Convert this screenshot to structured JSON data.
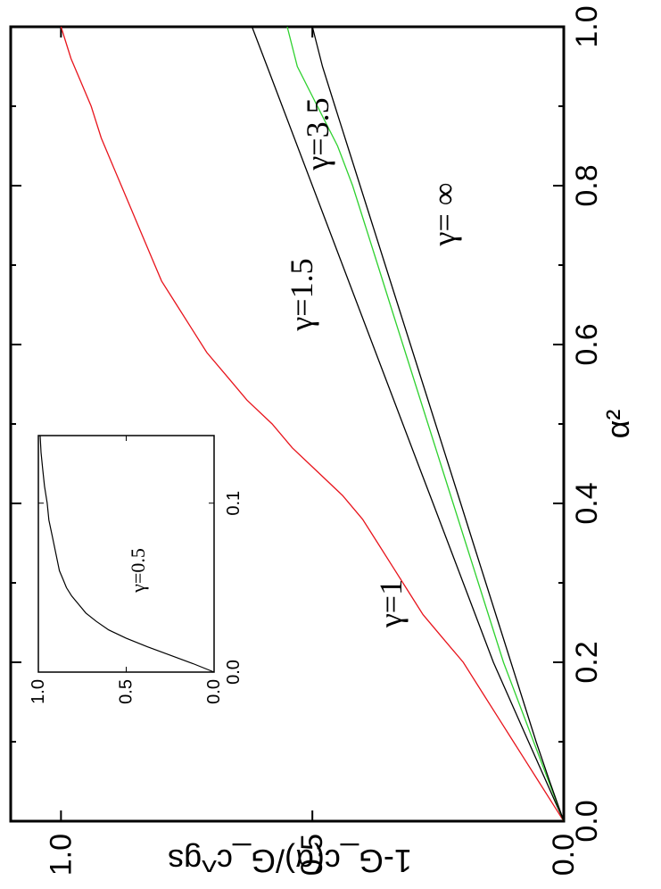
{
  "chart_data": [
    {
      "type": "line",
      "title": "",
      "xlabel": "α²",
      "ylabel": "1-G_c(α)/G_c^gs",
      "xlim": [
        0.0,
        1.0
      ],
      "ylim": [
        0.0,
        1.1
      ],
      "xticks": [
        "0.0",
        "0.2",
        "0.4",
        "0.6",
        "0.8",
        "1.0"
      ],
      "yticks": [
        "0.0",
        "0.5",
        "1.0"
      ],
      "grid": false,
      "colors": {
        "red": "#e8141c",
        "green": "#2fd12f",
        "black": "#000000"
      },
      "series": [
        {
          "name": "γ=1",
          "color": "#e8141c",
          "x": [
            0,
            0.02,
            0.05,
            0.08,
            0.1,
            0.13,
            0.16,
            0.2,
            0.23,
            0.26,
            0.29,
            0.32,
            0.35,
            0.38,
            0.41,
            0.44,
            0.47,
            0.5,
            0.53,
            0.56,
            0.59,
            0.62,
            0.65,
            0.68,
            0.71,
            0.74,
            0.77,
            0.8,
            0.83,
            0.86,
            0.9,
            0.93,
            0.96,
            1.0
          ],
          "y": [
            0,
            0.02,
            0.05,
            0.08,
            0.1,
            0.13,
            0.16,
            0.2,
            0.24,
            0.28,
            0.31,
            0.34,
            0.37,
            0.4,
            0.44,
            0.49,
            0.54,
            0.58,
            0.63,
            0.67,
            0.71,
            0.74,
            0.77,
            0.8,
            0.82,
            0.84,
            0.86,
            0.88,
            0.9,
            0.92,
            0.94,
            0.96,
            0.98,
            1.0
          ]
        },
        {
          "name": "γ=1.5",
          "color": "#000000",
          "x": [
            0,
            0.05,
            0.1,
            0.15,
            0.2,
            0.25,
            0.3,
            0.35,
            0.4,
            0.45,
            0.5,
            0.55,
            0.6,
            0.65,
            0.7,
            0.75,
            0.8,
            0.85,
            0.9,
            0.95,
            1.0
          ],
          "y": [
            0,
            0.035,
            0.07,
            0.105,
            0.14,
            0.17,
            0.2,
            0.23,
            0.26,
            0.29,
            0.32,
            0.35,
            0.38,
            0.41,
            0.44,
            0.47,
            0.5,
            0.53,
            0.56,
            0.59,
            0.62
          ]
        },
        {
          "name": "γ=3.5",
          "color": "#2fd12f",
          "x": [
            0,
            0.05,
            0.1,
            0.15,
            0.2,
            0.25,
            0.3,
            0.35,
            0.4,
            0.45,
            0.5,
            0.55,
            0.6,
            0.65,
            0.7,
            0.75,
            0.8,
            0.85,
            0.9,
            0.95,
            1.0
          ],
          "y": [
            0,
            0.03,
            0.06,
            0.09,
            0.12,
            0.145,
            0.17,
            0.195,
            0.22,
            0.245,
            0.27,
            0.295,
            0.32,
            0.345,
            0.37,
            0.395,
            0.42,
            0.45,
            0.49,
            0.53,
            0.55
          ]
        },
        {
          "name": "γ= ∞",
          "color": "#000000",
          "x": [
            0,
            0.05,
            0.1,
            0.15,
            0.2,
            0.25,
            0.3,
            0.35,
            0.4,
            0.45,
            0.5,
            0.55,
            0.6,
            0.65,
            0.7,
            0.75,
            0.8,
            0.85,
            0.9,
            0.95,
            1.0
          ],
          "y": [
            0,
            0.028,
            0.055,
            0.08,
            0.105,
            0.13,
            0.155,
            0.18,
            0.205,
            0.23,
            0.255,
            0.28,
            0.305,
            0.33,
            0.355,
            0.38,
            0.405,
            0.43,
            0.455,
            0.48,
            0.5
          ]
        }
      ],
      "labels": [
        "γ=1",
        "γ=1.5",
        "γ=3.5",
        "γ= ∞"
      ]
    },
    {
      "type": "line",
      "title": "",
      "xlabel": "",
      "ylabel": "",
      "xlim": [
        0.0,
        0.14
      ],
      "ylim": [
        0.0,
        1.0
      ],
      "xticks": [
        "0.0",
        "0.1"
      ],
      "yticks": [
        "0.0",
        "0.5",
        "1.0"
      ],
      "series": [
        {
          "name": "γ=0.5",
          "color": "#000000",
          "x": [
            0,
            0.005,
            0.01,
            0.015,
            0.02,
            0.025,
            0.03,
            0.035,
            0.04,
            0.045,
            0.05,
            0.055,
            0.06,
            0.07,
            0.08,
            0.09,
            0.1,
            0.11,
            0.12,
            0.13,
            0.14
          ],
          "y": [
            0,
            0.12,
            0.25,
            0.38,
            0.5,
            0.6,
            0.67,
            0.73,
            0.77,
            0.81,
            0.84,
            0.86,
            0.88,
            0.9,
            0.92,
            0.94,
            0.95,
            0.965,
            0.975,
            0.985,
            0.99
          ]
        }
      ],
      "labels": [
        "γ=0.5"
      ]
    }
  ]
}
